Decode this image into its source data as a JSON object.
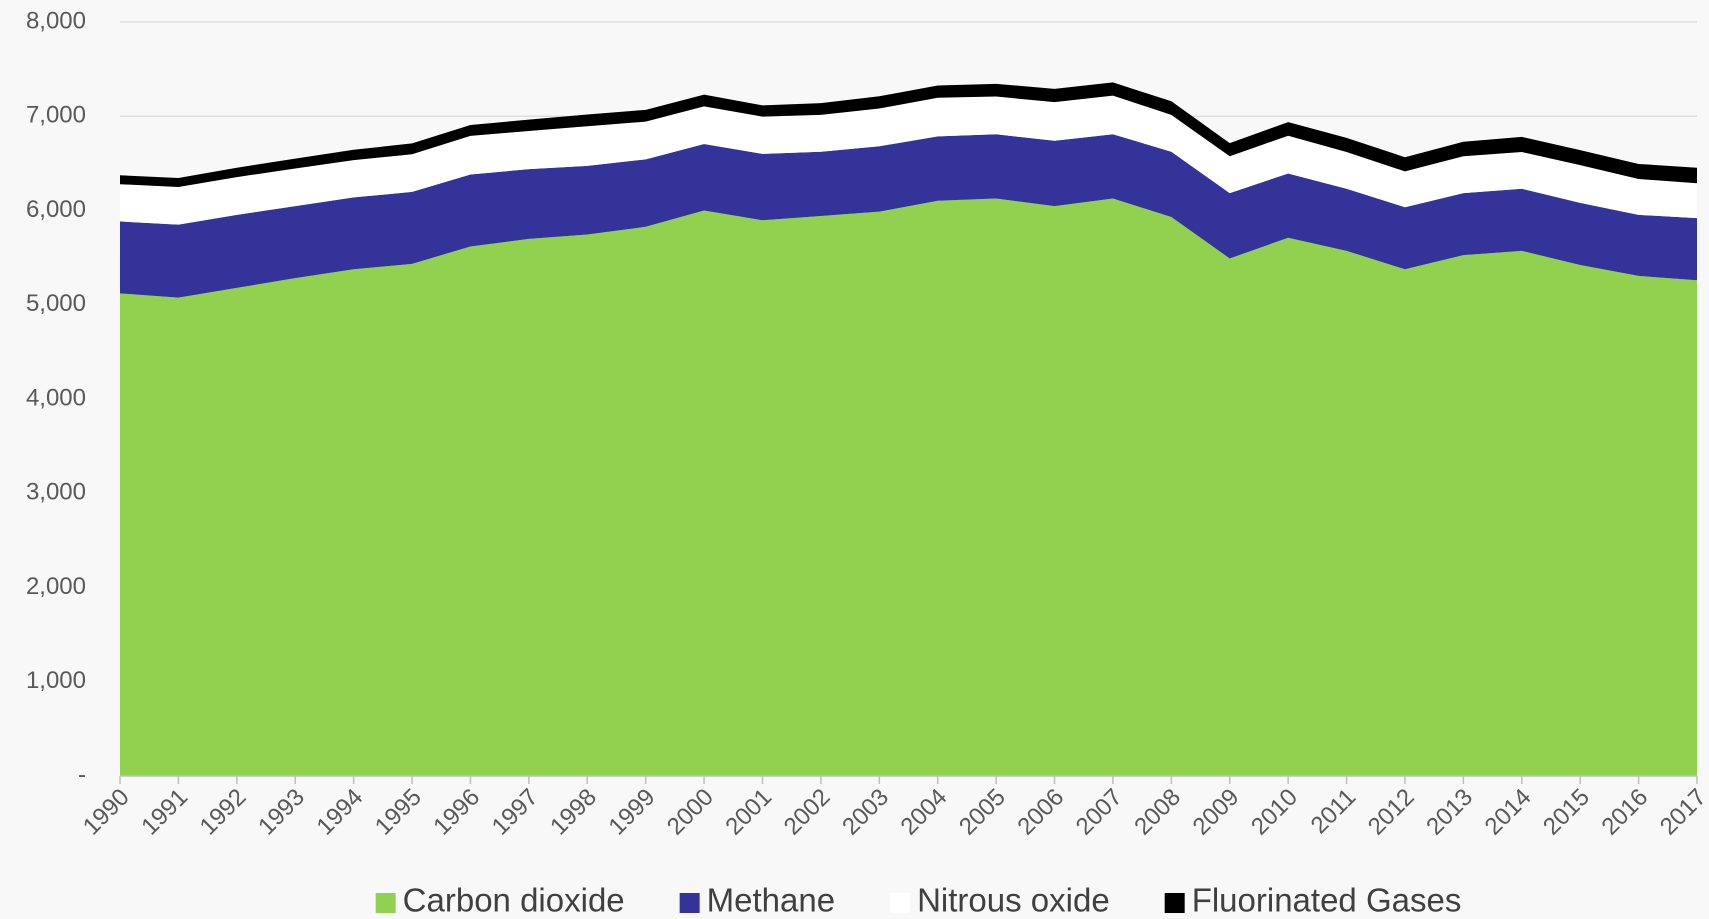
{
  "chart_data": {
    "type": "stacked_area",
    "categories": [
      "1990",
      "1991",
      "1992",
      "1993",
      "1994",
      "1995",
      "1996",
      "1997",
      "1998",
      "1999",
      "2000",
      "2001",
      "2002",
      "2003",
      "2004",
      "2005",
      "2006",
      "2007",
      "2008",
      "2009",
      "2010",
      "2011",
      "2012",
      "2013",
      "2014",
      "2015",
      "2016",
      "2017"
    ],
    "series": [
      {
        "name": "Carbon dioxide",
        "color": "#92d050",
        "values": [
          5121,
          5075,
          5179,
          5283,
          5376,
          5434,
          5618,
          5699,
          5746,
          5827,
          6000,
          5896,
          5942,
          5988,
          6104,
          6127,
          6046,
          6127,
          5931,
          5491,
          5711,
          5572,
          5376,
          5526,
          5572,
          5422,
          5306,
          5260
        ]
      },
      {
        "name": "Methane",
        "color": "#333399",
        "values": [
          763,
          775,
          775,
          763,
          763,
          763,
          764,
          740,
          728,
          716,
          705,
          705,
          682,
          694,
          682,
          682,
          694,
          682,
          693,
          694,
          682,
          659,
          659,
          659,
          659,
          659,
          648,
          659
        ]
      },
      {
        "name": "Nitrous oxide",
        "color": "#ffffff",
        "values": [
          395,
          400,
          400,
          400,
          395,
          400,
          410,
          405,
          420,
          400,
          400,
          395,
          390,
          400,
          410,
          400,
          410,
          410,
          390,
          390,
          400,
          390,
          380,
          390,
          390,
          400,
          380,
          370
        ]
      },
      {
        "name": "Fluorinated Gases",
        "color": "#000000",
        "values": [
          95,
          95,
          100,
          105,
          110,
          115,
          115,
          120,
          125,
          125,
          125,
          120,
          125,
          130,
          130,
          135,
          140,
          140,
          145,
          140,
          145,
          150,
          150,
          155,
          160,
          160,
          160,
          165
        ]
      }
    ],
    "ylim": [
      0,
      8000
    ],
    "yticks": [
      {
        "value": 0,
        "label": "-"
      },
      {
        "value": 1000,
        "label": "1,000"
      },
      {
        "value": 2000,
        "label": "2,000"
      },
      {
        "value": 3000,
        "label": "3,000"
      },
      {
        "value": 4000,
        "label": "4,000"
      },
      {
        "value": 5000,
        "label": "5,000"
      },
      {
        "value": 6000,
        "label": "6,000"
      },
      {
        "value": 7000,
        "label": "7,000"
      },
      {
        "value": 8000,
        "label": "8,000"
      }
    ],
    "grid": true,
    "legend": "bottom"
  }
}
